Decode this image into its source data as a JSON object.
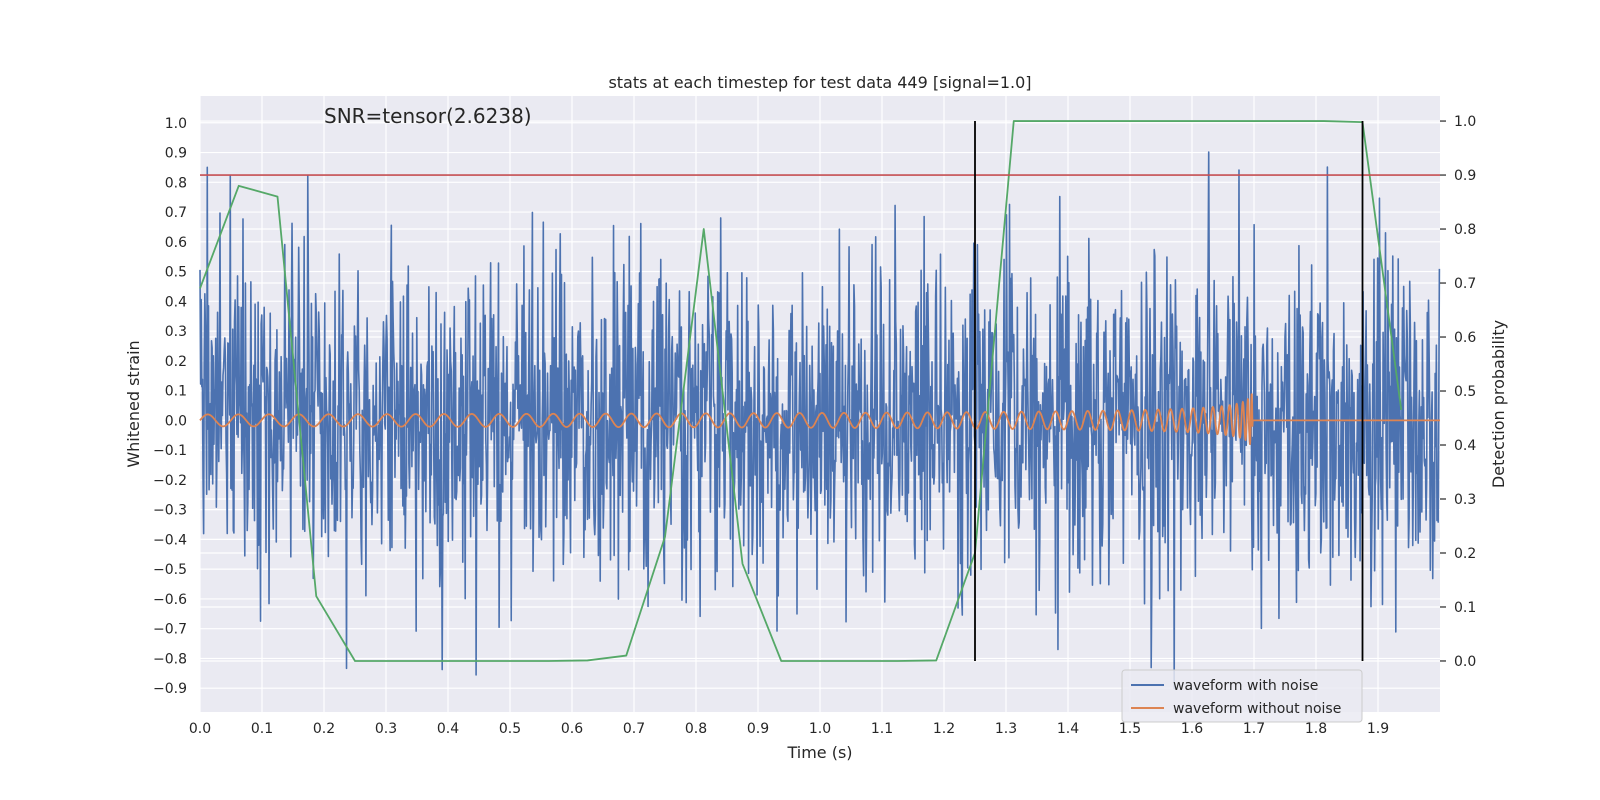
{
  "chart_data": {
    "type": "line",
    "title": "stats at each timestep for test data 449 [signal=1.0]",
    "xlabel": "Time (s)",
    "ylabel": "Whitened strain",
    "ylabel_right": "Detection probability",
    "annotation": "SNR=tensor(2.6238)",
    "xlim": [
      0.0,
      2.0
    ],
    "ylim": [
      -0.98,
      1.09
    ],
    "ylim_right": [
      -0.0945,
      1.0464
    ],
    "x_ticks": [
      0.0,
      0.1,
      0.2,
      0.3,
      0.4,
      0.5,
      0.6,
      0.7,
      0.8,
      0.9,
      1.0,
      1.1,
      1.2,
      1.3,
      1.4,
      1.5,
      1.6,
      1.7,
      1.8,
      1.9
    ],
    "x_tick_labels": [
      "0.0",
      "0.1",
      "0.2",
      "0.3",
      "0.4",
      "0.5",
      "0.6",
      "0.7",
      "0.8",
      "0.9",
      "1.0",
      "1.1",
      "1.2",
      "1.3",
      "1.4",
      "1.5",
      "1.6",
      "1.7",
      "1.8",
      "1.9"
    ],
    "y_ticks": [
      -0.9,
      -0.8,
      -0.7,
      -0.6,
      -0.5,
      -0.4,
      -0.3,
      -0.2,
      -0.1,
      0.0,
      0.1,
      0.2,
      0.3,
      0.4,
      0.5,
      0.6,
      0.7,
      0.8,
      0.9,
      1.0
    ],
    "y_tick_labels": [
      "−0.9",
      "−0.8",
      "−0.7",
      "−0.6",
      "−0.5",
      "−0.4",
      "−0.3",
      "−0.2",
      "−0.1",
      "0.0",
      "0.1",
      "0.2",
      "0.3",
      "0.4",
      "0.5",
      "0.6",
      "0.7",
      "0.8",
      "0.9",
      "1.0"
    ],
    "y_right_ticks": [
      0.0,
      0.1,
      0.2,
      0.3,
      0.4,
      0.5,
      0.6,
      0.7,
      0.8,
      0.9,
      1.0
    ],
    "y_right_tick_labels": [
      "0.0",
      "0.1",
      "0.2",
      "0.3",
      "0.4",
      "0.5",
      "0.6",
      "0.7",
      "0.8",
      "0.9",
      "1.0"
    ],
    "series": [
      {
        "name": "waveform with noise",
        "color": "#4c72b0",
        "axis": "left",
        "kind": "noise",
        "n_samples": 2048,
        "approx_std": 0.27,
        "approx_min": -0.9,
        "approx_max": 1.0,
        "seed": 449
      },
      {
        "name": "waveform without noise",
        "color": "#dd8452",
        "axis": "left",
        "kind": "chirp",
        "merger_time": 1.7,
        "start_frequency": 20,
        "start_amplitude": 0.02,
        "peak_amplitude": 0.1
      },
      {
        "name": "detection probability",
        "color": "#55a868",
        "axis": "right",
        "kind": "line",
        "x": [
          0.0,
          0.0625,
          0.125,
          0.1875,
          0.25,
          0.3125,
          0.375,
          0.4375,
          0.5,
          0.5625,
          0.625,
          0.6875,
          0.75,
          0.8125,
          0.875,
          0.9375,
          1.0,
          1.0625,
          1.125,
          1.1875,
          1.25,
          1.3125,
          1.375,
          1.4375,
          1.5,
          1.5625,
          1.625,
          1.6875,
          1.75,
          1.8125,
          1.875,
          1.9375
        ],
        "y": [
          0.69,
          0.88,
          0.86,
          0.12,
          0.0,
          0.0,
          0.0,
          0.0,
          0.0,
          0.0,
          0.001,
          0.01,
          0.23,
          0.8,
          0.18,
          0.0,
          0.0,
          0.0,
          0.0,
          0.001,
          0.2,
          1.0,
          1.0,
          1.0,
          1.0,
          1.0,
          1.0,
          1.0,
          1.0,
          1.0,
          0.998,
          0.465
        ]
      }
    ],
    "hlines": [
      {
        "y": 0.9,
        "axis": "right",
        "color": "#c44e52"
      }
    ],
    "vlines": [
      {
        "x": 1.25,
        "ymin": 0.0,
        "ymax": 1.0,
        "axis": "right",
        "color": "#000000"
      },
      {
        "x": 1.875,
        "ymin": 0.0,
        "ymax": 1.0,
        "axis": "right",
        "color": "#000000"
      }
    ],
    "legend": {
      "location": "lower-right",
      "entries": [
        {
          "label": "waveform with noise",
          "color": "#4c72b0"
        },
        {
          "label": "waveform without noise",
          "color": "#dd8452"
        }
      ]
    },
    "style": {
      "background": "#eaeaf2",
      "grid_color": "#ffffff"
    }
  }
}
